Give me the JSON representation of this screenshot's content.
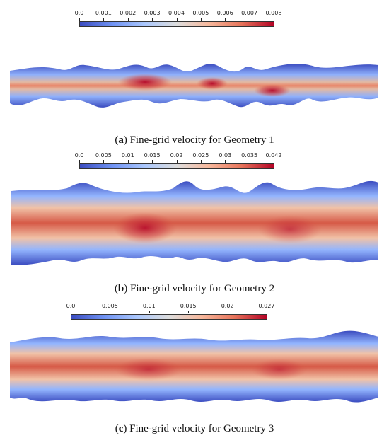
{
  "colorbar_colors": [
    "#3b4cc0",
    "#6f92f3",
    "#aac7fd",
    "#dddddd",
    "#f7b89c",
    "#e7745b",
    "#b40426"
  ],
  "panels": [
    {
      "id": "a",
      "caption_letter": "a",
      "caption_text": "Fine-grid velocity for Geometry 1",
      "scale": {
        "ticks": [
          "0.0",
          "0.001",
          "0.002",
          "0.003",
          "0.004",
          "0.005",
          "0.006",
          "0.007",
          "0.008"
        ]
      }
    },
    {
      "id": "b",
      "caption_letter": "b",
      "caption_text": "Fine-grid velocity for Geometry 2",
      "scale": {
        "ticks": [
          "0.0",
          "0.005",
          "0.01",
          "0.015",
          "0.02",
          "0.025",
          "0.03",
          "0.035",
          "0.042"
        ]
      }
    },
    {
      "id": "c",
      "caption_letter": "c",
      "caption_text": "Fine-grid velocity for Geometry 3",
      "scale": {
        "ticks": [
          "0.0",
          "0.005",
          "0.01",
          "0.015",
          "0.02",
          "0.027"
        ]
      }
    }
  ]
}
